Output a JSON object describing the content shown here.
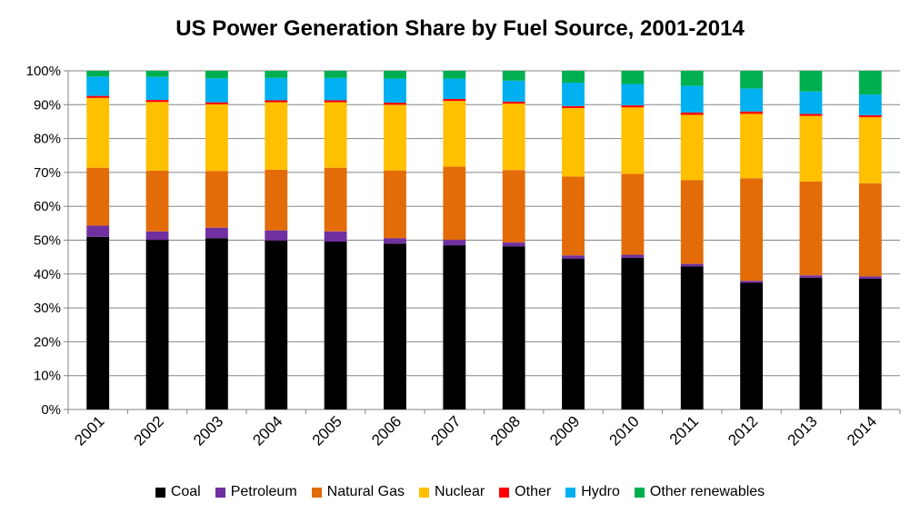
{
  "chart_data": {
    "type": "bar",
    "stacked": true,
    "title": "US Power Generation Share by Fuel Source, 2001-2014",
    "xlabel": "",
    "ylabel": "",
    "ylim": [
      0,
      100
    ],
    "yticks": [
      "0%",
      "10%",
      "20%",
      "30%",
      "40%",
      "50%",
      "60%",
      "70%",
      "80%",
      "90%",
      "100%"
    ],
    "grid": true,
    "legend_position": "bottom",
    "categories": [
      "2001",
      "2002",
      "2003",
      "2004",
      "2005",
      "2006",
      "2007",
      "2008",
      "2009",
      "2010",
      "2011",
      "2012",
      "2013",
      "2014"
    ],
    "series": [
      {
        "name": "Coal",
        "color": "#000000",
        "values": [
          51.0,
          50.1,
          50.6,
          49.9,
          49.6,
          49.0,
          48.5,
          48.2,
          44.5,
          44.8,
          42.3,
          37.4,
          38.9,
          38.6
        ]
      },
      {
        "name": "Petroleum",
        "color": "#7030A0",
        "values": [
          3.3,
          2.5,
          3.1,
          3.0,
          3.0,
          1.6,
          1.6,
          1.1,
          1.0,
          0.9,
          0.7,
          0.6,
          0.7,
          0.7
        ]
      },
      {
        "name": "Natural Gas",
        "color": "#E36C09",
        "values": [
          17.1,
          17.9,
          16.7,
          17.9,
          18.8,
          20.0,
          21.6,
          21.4,
          23.3,
          23.9,
          24.7,
          30.3,
          27.7,
          27.5
        ]
      },
      {
        "name": "Nuclear",
        "color": "#FFC000",
        "values": [
          20.6,
          20.3,
          19.7,
          19.9,
          19.3,
          19.4,
          19.4,
          19.6,
          20.2,
          19.6,
          19.3,
          19.0,
          19.4,
          19.5
        ]
      },
      {
        "name": "Other",
        "color": "#FF0000",
        "values": [
          0.6,
          0.6,
          0.6,
          0.6,
          0.6,
          0.6,
          0.6,
          0.6,
          0.6,
          0.6,
          0.7,
          0.7,
          0.6,
          0.6
        ]
      },
      {
        "name": "Hydro",
        "color": "#00B0F0",
        "values": [
          5.7,
          6.8,
          7.1,
          6.6,
          6.6,
          7.1,
          6.0,
          6.2,
          6.9,
          6.3,
          7.9,
          6.8,
          6.6,
          6.1
        ]
      },
      {
        "name": "Other renewables",
        "color": "#00B050",
        "values": [
          1.7,
          1.8,
          2.2,
          2.1,
          2.1,
          2.3,
          2.3,
          2.9,
          3.5,
          3.9,
          4.4,
          5.2,
          6.1,
          7.0
        ]
      }
    ]
  }
}
